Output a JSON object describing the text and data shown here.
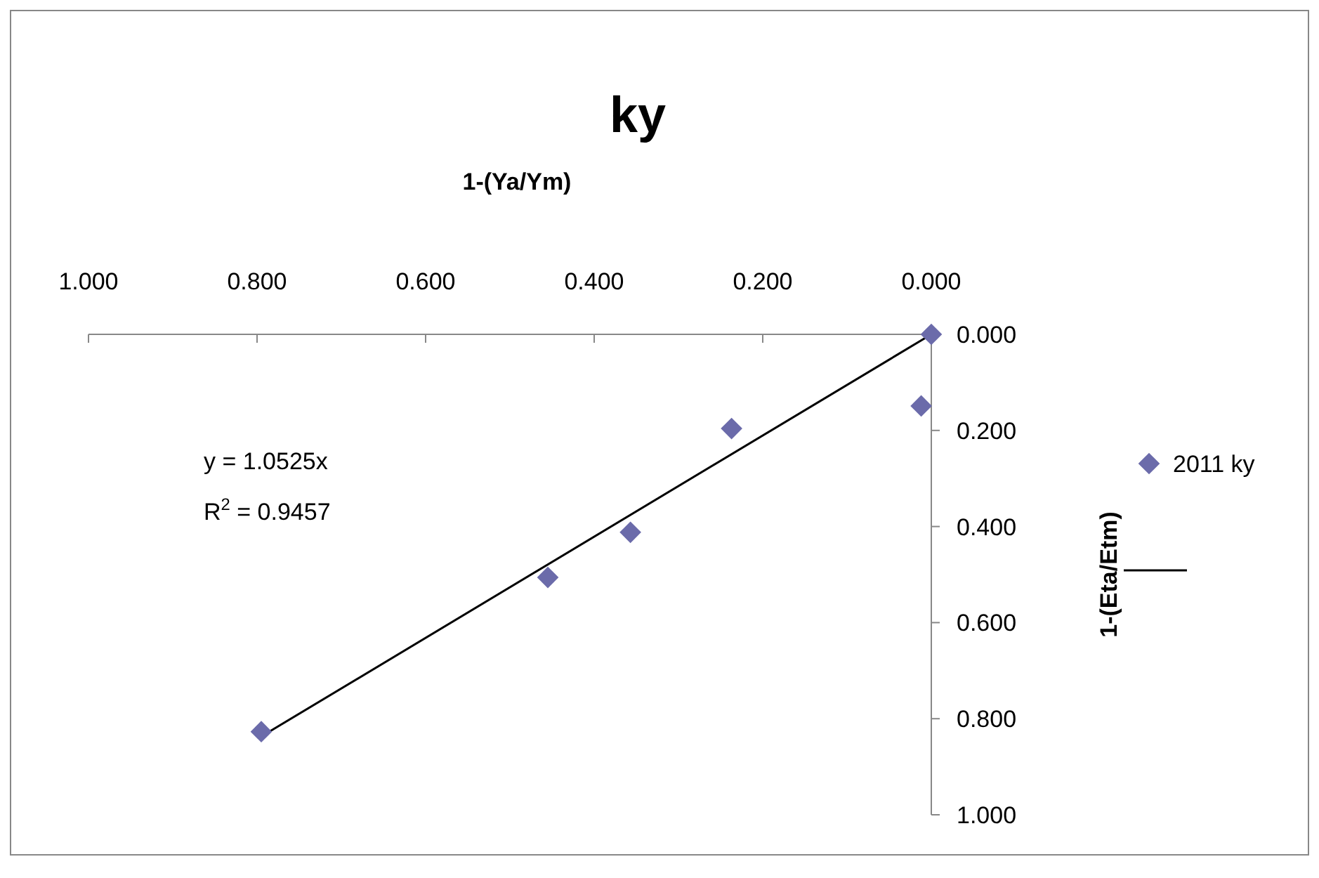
{
  "chart_data": {
    "type": "scatter",
    "title": "ky",
    "xlabel": "1-(Ya/Ym)",
    "ylabel": "1-(Eta/Etm)",
    "xlim": [
      1,
      0
    ],
    "ylim": [
      1,
      0
    ],
    "xticks": [
      {
        "value": 1,
        "label": "1.000"
      },
      {
        "value": 0.8,
        "label": "0.800"
      },
      {
        "value": 0.6,
        "label": "0.600"
      },
      {
        "value": 0.4,
        "label": "0.400"
      },
      {
        "value": 0.2,
        "label": "0.200"
      },
      {
        "value": 0,
        "label": "0.000"
      }
    ],
    "yticks": [
      {
        "value": 0,
        "label": "0.000"
      },
      {
        "value": 0.2,
        "label": "0.200"
      },
      {
        "value": 0.4,
        "label": "0.400"
      },
      {
        "value": 0.6,
        "label": "0.600"
      },
      {
        "value": 0.8,
        "label": "0.800"
      },
      {
        "value": 1,
        "label": "1.000"
      }
    ],
    "series": [
      {
        "name": "2011 ky",
        "marker": "diamond",
        "color": "#6b6baa",
        "x": [
          0,
          0.012,
          0.237,
          0.357,
          0.455,
          0.795
        ],
        "values": [
          0,
          0.149,
          0.196,
          0.412,
          0.506,
          0.827
        ]
      },
      {
        "type": "line",
        "marker": "none",
        "color": "#000000",
        "x": [
          0,
          0.795
        ],
        "values": [
          0,
          0.837
        ]
      }
    ],
    "line_style": "solid",
    "grid": false,
    "legend": "right",
    "annotations": [
      "y = 1.0525x",
      "R$^{2}$ = 0.9457"
    ]
  }
}
